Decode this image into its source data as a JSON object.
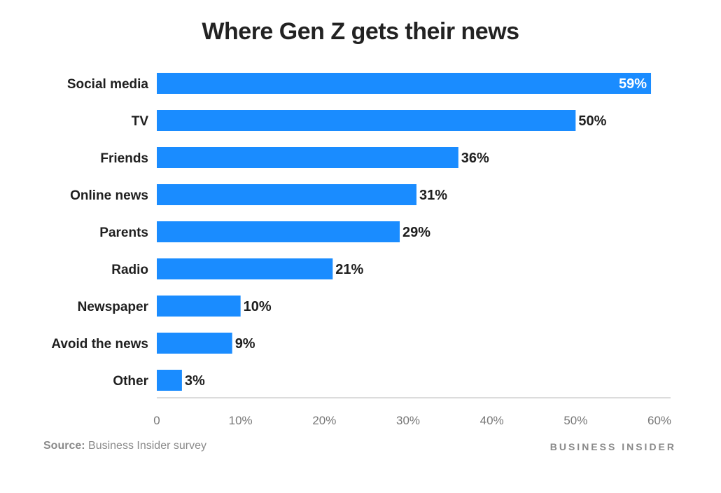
{
  "chart_data": {
    "type": "bar",
    "orientation": "horizontal",
    "title": "Where Gen Z gets their news",
    "categories": [
      "Social media",
      "TV",
      "Friends",
      "Online news",
      "Parents",
      "Radio",
      "Newspaper",
      "Avoid the news",
      "Other"
    ],
    "values": [
      59,
      50,
      36,
      31,
      29,
      21,
      10,
      9,
      3
    ],
    "data_labels": [
      "59%",
      "50%",
      "36%",
      "31%",
      "29%",
      "21%",
      "10%",
      "9%",
      "3%"
    ],
    "xlim": [
      0,
      60
    ],
    "x_ticks": [
      0,
      10,
      20,
      30,
      40,
      50,
      60
    ],
    "x_tick_labels": [
      "0",
      "10%",
      "20%",
      "30%",
      "40%",
      "50%",
      "60%"
    ],
    "xlabel": "",
    "ylabel": "",
    "grid": false,
    "bar_color": "#1a8cff"
  },
  "footer": {
    "source_label": "Source:",
    "source_text": " Business Insider survey",
    "brand": "BUSINESS INSIDER"
  }
}
